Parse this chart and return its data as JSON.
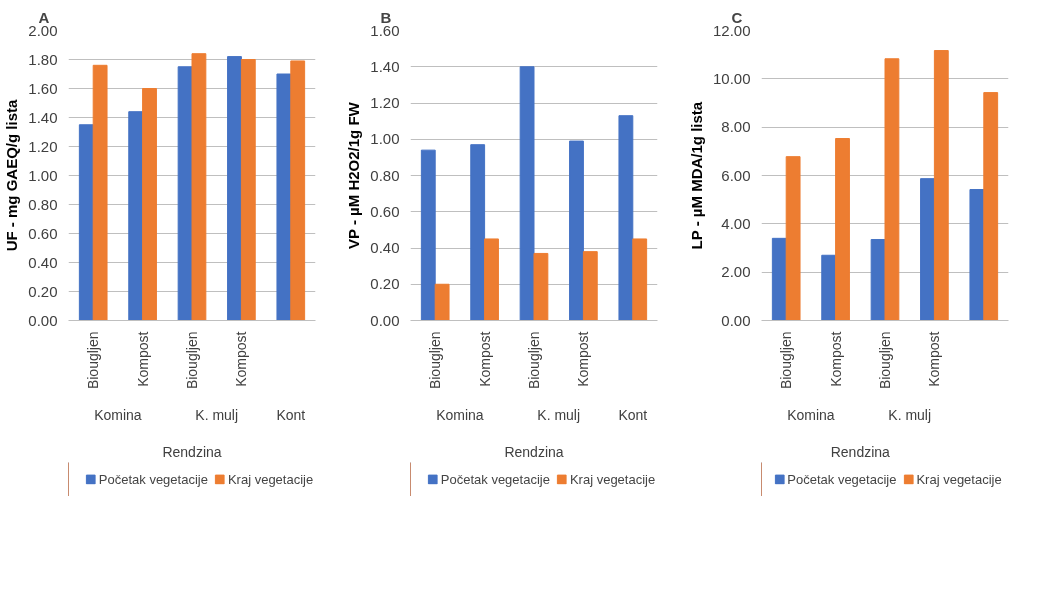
{
  "chart_data": [
    {
      "type": "bar",
      "title": "A",
      "ylabel": "UF - mg GAEQ/g lista",
      "categories": [
        "Biougljen",
        "Kompost",
        "Biougljen",
        "Kompost",
        null
      ],
      "annotations": [
        "Komina",
        "K. mulj",
        "Kont",
        "Rendzina"
      ],
      "series": [
        {
          "name": "Početak vegetacije",
          "color": "#4472c4",
          "values": [
            1.35,
            1.44,
            1.75,
            1.82,
            1.7
          ]
        },
        {
          "name": "Kraj vegetacije",
          "color": "#ed7d31",
          "values": [
            1.76,
            1.6,
            1.84,
            1.8,
            1.79
          ]
        }
      ],
      "ylim": [
        0,
        2
      ],
      "yticks": [
        {
          "value": 0,
          "label": "0.00"
        },
        {
          "value": 0.2,
          "label": "0.20"
        },
        {
          "value": 0.4,
          "label": "0.40"
        },
        {
          "value": 0.6,
          "label": "0.60"
        },
        {
          "value": 0.8,
          "label": "0.80"
        },
        {
          "value": 1.0,
          "label": "1.00"
        },
        {
          "value": 1.2,
          "label": "1.20"
        },
        {
          "value": 1.4,
          "label": "1.40"
        },
        {
          "value": 1.6,
          "label": "1.60"
        },
        {
          "value": 1.8,
          "label": "1.80"
        },
        {
          "value": 2.0,
          "label": "2.00"
        }
      ],
      "grid": "y",
      "legend": "bottom"
    },
    {
      "type": "bar",
      "title": "B",
      "ylabel": "VP - µM H2O2/1g FW",
      "categories": [
        "Biougljen",
        "Kompost",
        "Biougljen",
        "Kompost",
        null
      ],
      "annotations": [
        "Komina",
        "K. mulj",
        "Kont",
        "Rendzina"
      ],
      "series": [
        {
          "name": "Početak vegetacije",
          "color": "#4472c4",
          "values": [
            0.94,
            0.97,
            1.4,
            0.99,
            1.13
          ]
        },
        {
          "name": "Kraj vegetacije",
          "color": "#ed7d31",
          "values": [
            0.2,
            0.45,
            0.37,
            0.38,
            0.45
          ]
        }
      ],
      "ylim": [
        0,
        1.6
      ],
      "yticks": [
        {
          "value": 0,
          "label": "0.00"
        },
        {
          "value": 0.2,
          "label": "0.20"
        },
        {
          "value": 0.4,
          "label": "0.40"
        },
        {
          "value": 0.6,
          "label": "0.60"
        },
        {
          "value": 0.8,
          "label": "0.80"
        },
        {
          "value": 1.0,
          "label": "1.00"
        },
        {
          "value": 1.2,
          "label": "1.20"
        },
        {
          "value": 1.4,
          "label": "1.40"
        },
        {
          "value": 1.6,
          "label": "1.60"
        }
      ],
      "grid": "y",
      "legend": "bottom"
    },
    {
      "type": "bar",
      "title": "C",
      "ylabel": "LP - µM MDA/1g lista",
      "categories": [
        "Biougljen",
        "Kompost",
        "Biougljen",
        "Kompost",
        null
      ],
      "annotations": [
        "Komina",
        "K. mulj",
        "Rendzina"
      ],
      "series": [
        {
          "name": "Početak vegetacije",
          "color": "#4472c4",
          "values": [
            3.4,
            2.7,
            3.35,
            5.87,
            5.42
          ]
        },
        {
          "name": "Kraj vegetacije",
          "color": "#ed7d31",
          "values": [
            6.78,
            7.53,
            10.83,
            11.17,
            9.43
          ]
        }
      ],
      "ylim": [
        0,
        12
      ],
      "yticks": [
        {
          "value": 0,
          "label": "0.00"
        },
        {
          "value": 2,
          "label": "2.00"
        },
        {
          "value": 4,
          "label": "4.00"
        },
        {
          "value": 6,
          "label": "6.00"
        },
        {
          "value": 8,
          "label": "8.00"
        },
        {
          "value": 10,
          "label": "10.00"
        },
        {
          "value": 12,
          "label": "12.00"
        }
      ],
      "grid": "y",
      "legend": "bottom"
    }
  ]
}
